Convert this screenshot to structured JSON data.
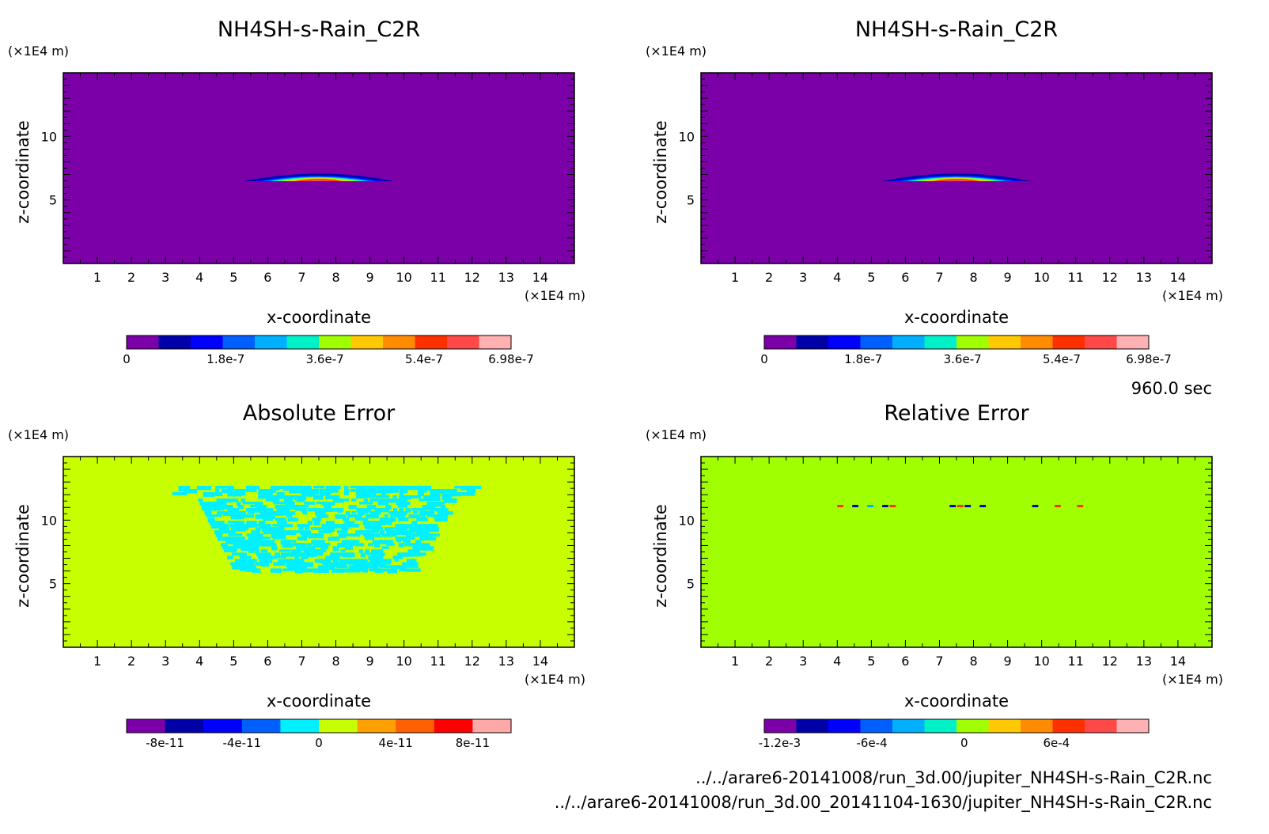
{
  "timestamp": "960.0 sec",
  "file_paths": [
    "../../arare6-20141008/run_3d.00/jupiter_NH4SH-s-Rain_C2R.nc",
    "../../arare6-20141008/run_3d.00_20141104-1630/jupiter_NH4SH-s-Rain_C2R.nc"
  ],
  "chart_data": [
    {
      "type": "heatmap",
      "title": "NH4SH-s-Rain_C2R",
      "xlabel": "x-coordinate",
      "ylabel": "z-coordinate",
      "x_unit": "(×1E4 m)",
      "y_unit": "(×1E4 m)",
      "xlim": [
        0,
        15
      ],
      "ylim": [
        0,
        15
      ],
      "x_ticks": [
        1,
        2,
        3,
        4,
        5,
        6,
        7,
        8,
        9,
        10,
        11,
        12,
        13,
        14
      ],
      "y_ticks": [
        5,
        10
      ],
      "background_value": 0,
      "feature": "lens-shaped maximum centred near x=7.5, z=6.5",
      "colorbar": {
        "colors": [
          "#7b00a8",
          "#0000a8",
          "#0000ff",
          "#0060ff",
          "#00b0ff",
          "#00f0c8",
          "#a0ff00",
          "#ffc800",
          "#ff8c00",
          "#ff3000",
          "#ff4848",
          "#ffb0b0"
        ],
        "tick_values": [
          0,
          1.8e-07,
          3.6e-07,
          5.4e-07,
          6.98e-07
        ],
        "tick_labels": [
          "0",
          "1.8e-7",
          "3.6e-7",
          "5.4e-7",
          "6.98e-7"
        ],
        "min": 0,
        "max": 6.98e-07
      }
    },
    {
      "type": "heatmap",
      "title": "NH4SH-s-Rain_C2R",
      "xlabel": "x-coordinate",
      "ylabel": "z-coordinate",
      "x_unit": "(×1E4 m)",
      "y_unit": "(×1E4 m)",
      "xlim": [
        0,
        15
      ],
      "ylim": [
        0,
        15
      ],
      "x_ticks": [
        1,
        2,
        3,
        4,
        5,
        6,
        7,
        8,
        9,
        10,
        11,
        12,
        13,
        14
      ],
      "y_ticks": [
        5,
        10
      ],
      "background_value": 0,
      "feature": "lens-shaped maximum centred near x=7.5, z=6.5",
      "colorbar": {
        "colors": [
          "#7b00a8",
          "#0000a8",
          "#0000ff",
          "#0060ff",
          "#00b0ff",
          "#00f0c8",
          "#a0ff00",
          "#ffc800",
          "#ff8c00",
          "#ff3000",
          "#ff4848",
          "#ffb0b0"
        ],
        "tick_values": [
          0,
          1.8e-07,
          3.6e-07,
          5.4e-07,
          6.98e-07
        ],
        "tick_labels": [
          "0",
          "1.8e-7",
          "3.6e-7",
          "5.4e-7",
          "6.98e-7"
        ],
        "min": 0,
        "max": 6.98e-07
      }
    },
    {
      "type": "heatmap",
      "title": "Absolute Error",
      "xlabel": "x-coordinate",
      "ylabel": "z-coordinate",
      "x_unit": "(×1E4 m)",
      "y_unit": "(×1E4 m)",
      "xlim": [
        0,
        15
      ],
      "ylim": [
        0,
        15
      ],
      "x_ticks": [
        1,
        2,
        3,
        4,
        5,
        6,
        7,
        8,
        9,
        10,
        11,
        12,
        13,
        14
      ],
      "y_ticks": [
        5,
        10
      ],
      "background_value": 0,
      "feature": "noisy region of small negative errors between x=3 and x=12, z=6 to z=12.5",
      "colorbar": {
        "colors": [
          "#7b00a8",
          "#0000a8",
          "#0000ff",
          "#0060ff",
          "#00f0ff",
          "#c8ff00",
          "#ffa000",
          "#ff6000",
          "#ff0000",
          "#ffa8a8"
        ],
        "tick_values": [
          -8e-11,
          -4e-11,
          0,
          4e-11,
          8e-11
        ],
        "tick_labels": [
          "-8e-11",
          "-4e-11",
          "0",
          "4e-11",
          "8e-11"
        ],
        "min": -1e-10,
        "max": 1e-10
      }
    },
    {
      "type": "heatmap",
      "title": "Relative Error",
      "xlabel": "x-coordinate",
      "ylabel": "z-coordinate",
      "x_unit": "(×1E4 m)",
      "y_unit": "(×1E4 m)",
      "xlim": [
        0,
        15
      ],
      "ylim": [
        0,
        15
      ],
      "x_ticks": [
        1,
        2,
        3,
        4,
        5,
        6,
        7,
        8,
        9,
        10,
        11,
        12,
        13,
        14
      ],
      "y_ticks": [
        5,
        10
      ],
      "background_value": 0,
      "feature": "noisy region of small negative errors between x=3.5 and x=11.5, z=6 to z=12.5 with extreme values along z=11",
      "colorbar": {
        "colors": [
          "#7b00a8",
          "#0000a8",
          "#0000ff",
          "#0060ff",
          "#00b0ff",
          "#00f0c8",
          "#a0ff00",
          "#ffc800",
          "#ff8c00",
          "#ff3000",
          "#ff4848",
          "#ffb0b0"
        ],
        "tick_values": [
          -0.0012,
          -0.0006,
          0,
          0.0006
        ],
        "tick_labels": [
          "-1.2e-3",
          "-6e-4",
          "0",
          "6e-4"
        ],
        "min": -0.0013,
        "max": 0.0012
      }
    }
  ]
}
